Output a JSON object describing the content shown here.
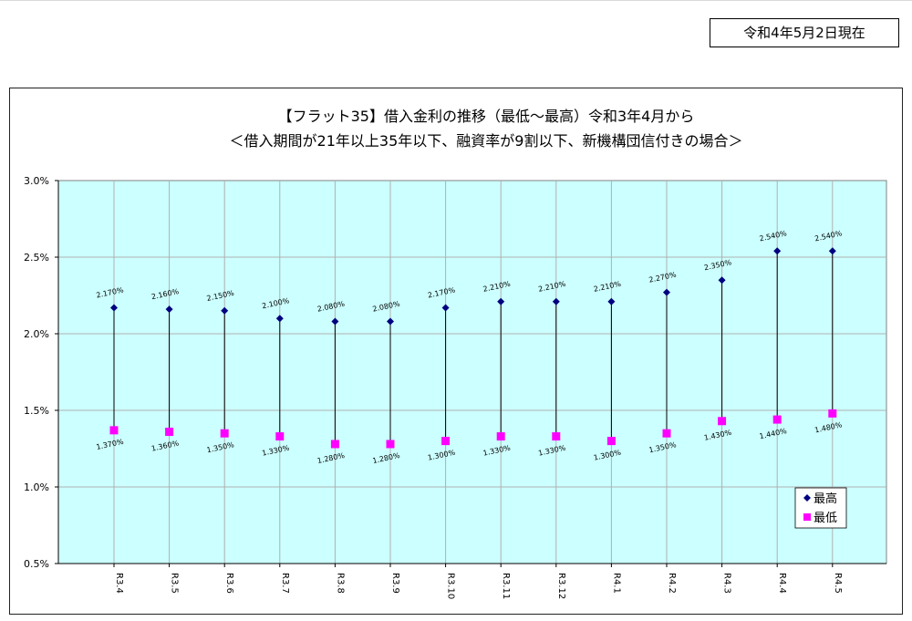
{
  "header": {
    "as_of": "令和4年5月2日現在"
  },
  "chart_data": {
    "type": "scatter",
    "title": "【フラット35】借入金利の推移（最低～最高）令和3年4月から",
    "subtitle": "＜借入期間が21年以上35年以下、融資率が9割以下、新機構団信付きの場合＞",
    "categories": [
      "R3.4",
      "R3.5",
      "R3.6",
      "R3.7",
      "R3.8",
      "R3.9",
      "R3.10",
      "R3.11",
      "R3.12",
      "R4.1",
      "R4.2",
      "R4.3",
      "R4.4",
      "R4.5"
    ],
    "series": [
      {
        "name": "最高",
        "values": [
          2.17,
          2.16,
          2.15,
          2.1,
          2.08,
          2.08,
          2.17,
          2.21,
          2.21,
          2.21,
          2.27,
          2.35,
          2.54,
          2.54
        ],
        "labels": [
          "2.170%",
          "2.160%",
          "2.150%",
          "2.100%",
          "2.080%",
          "2.080%",
          "2.170%",
          "2.210%",
          "2.210%",
          "2.210%",
          "2.270%",
          "2.350%",
          "2.540%",
          "2.540%"
        ],
        "color": "#000080",
        "marker": "diamond"
      },
      {
        "name": "最低",
        "values": [
          1.37,
          1.36,
          1.35,
          1.33,
          1.28,
          1.28,
          1.3,
          1.33,
          1.33,
          1.3,
          1.35,
          1.43,
          1.44,
          1.48
        ],
        "labels": [
          "1.370%",
          "1.360%",
          "1.350%",
          "1.330%",
          "1.280%",
          "1.280%",
          "1.300%",
          "1.330%",
          "1.330%",
          "1.300%",
          "1.350%",
          "1.430%",
          "1.440%",
          "1.480%"
        ],
        "color": "#ff00ff",
        "marker": "square"
      }
    ],
    "ylim": [
      0.5,
      3.0
    ],
    "yticks": [
      "0.5%",
      "1.0%",
      "1.5%",
      "2.0%",
      "2.5%",
      "3.0%"
    ],
    "ytick_values": [
      0.5,
      1.0,
      1.5,
      2.0,
      2.5,
      3.0
    ],
    "grid": true,
    "plot_background": "#ccffff",
    "grid_color": "#b0b0b0",
    "hi_lo_line_color": "#000000",
    "legend_position": "bottom-right"
  }
}
